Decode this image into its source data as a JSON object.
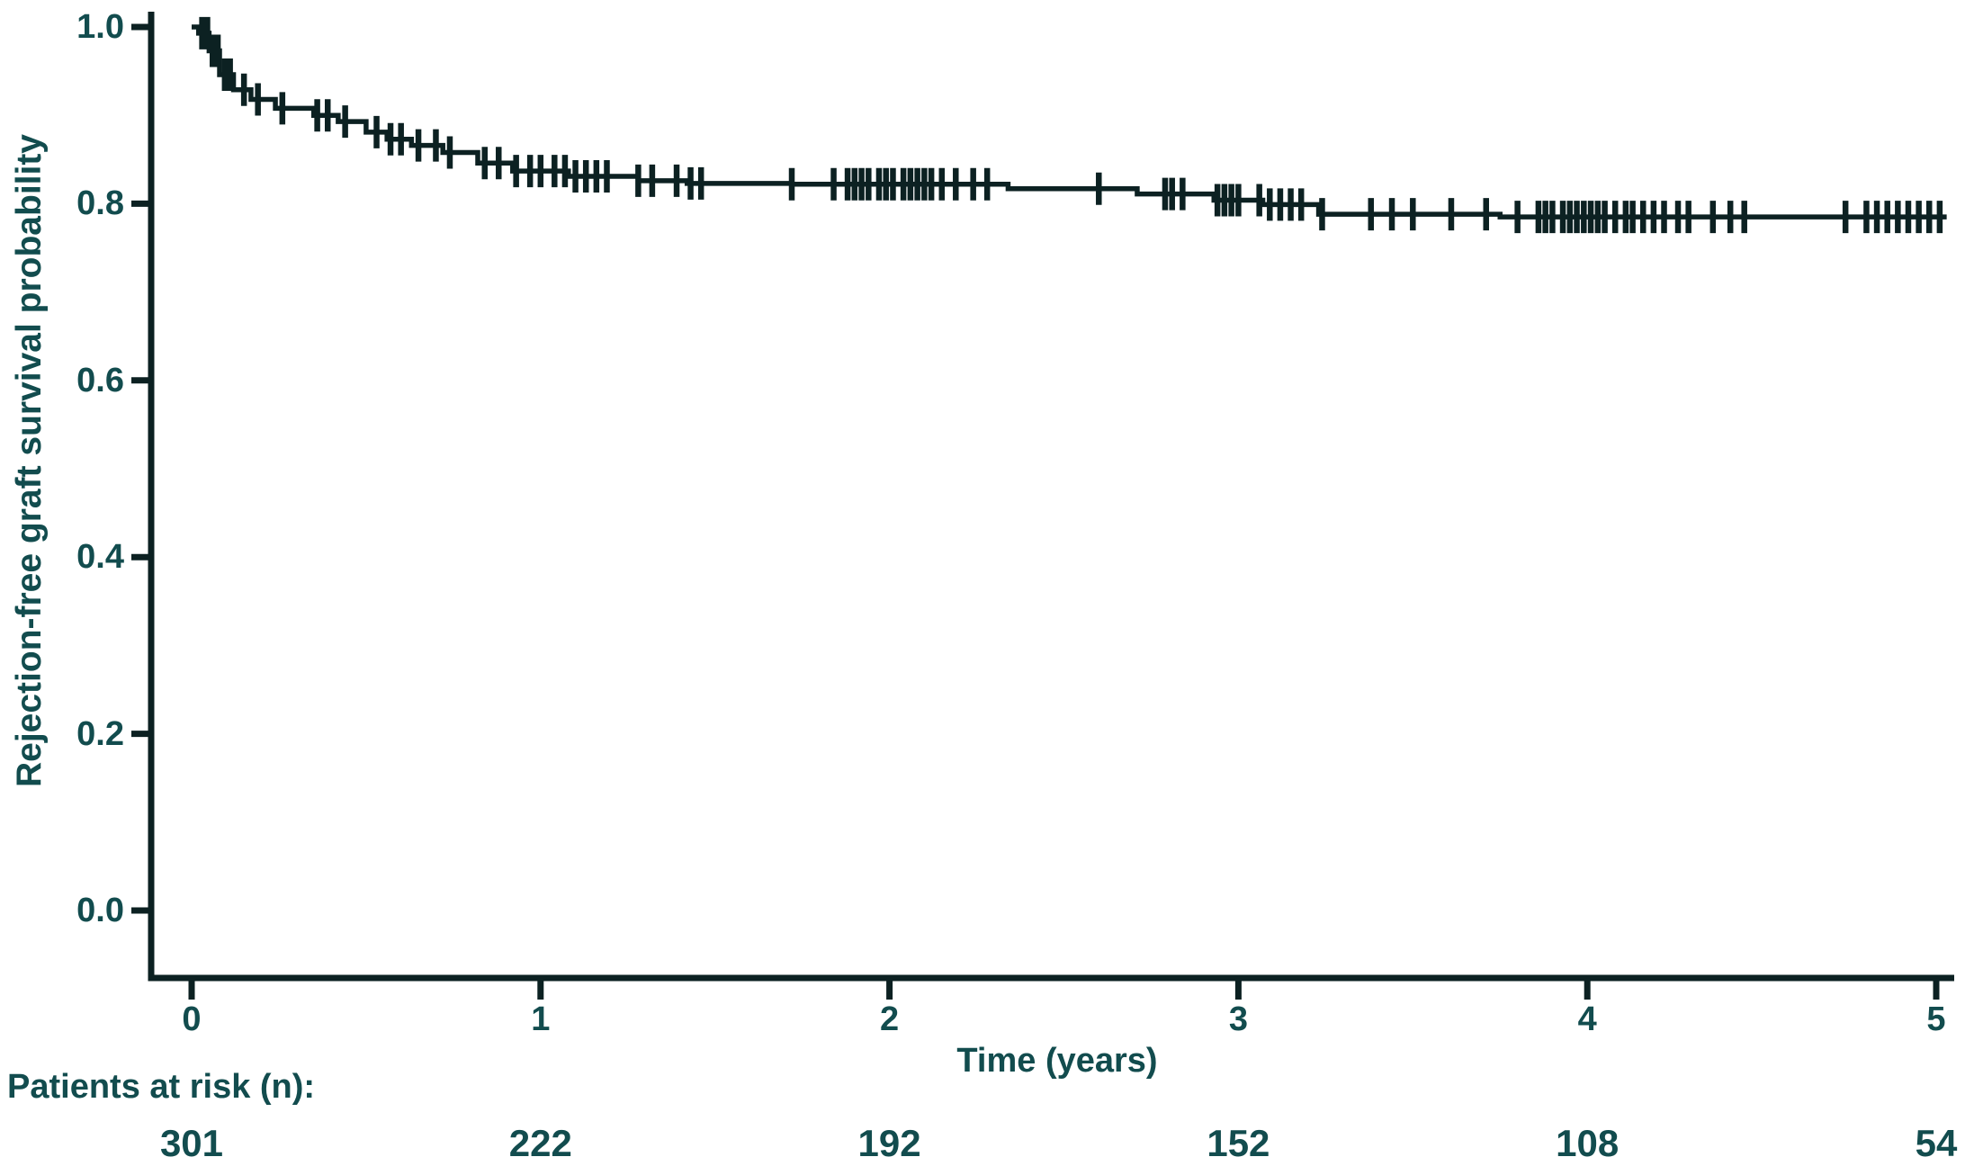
{
  "chart_data": {
    "type": "line",
    "subtype": "kaplan-meier-step-curve",
    "title": "",
    "xlabel": "Time (years)",
    "ylabel": "Rejection-free graft survival probability",
    "xlim": [
      0,
      5
    ],
    "ylim": [
      0.0,
      1.0
    ],
    "grid": false,
    "legend": "none",
    "x_ticks": [
      {
        "value": 0,
        "label": "0"
      },
      {
        "value": 1,
        "label": "1"
      },
      {
        "value": 2,
        "label": "2"
      },
      {
        "value": 3,
        "label": "3"
      },
      {
        "value": 4,
        "label": "4"
      },
      {
        "value": 5,
        "label": "5"
      }
    ],
    "y_ticks": [
      {
        "value": 1.0,
        "label": "1.0"
      },
      {
        "value": 0.8,
        "label": "0.8"
      },
      {
        "value": 0.6,
        "label": "0.6"
      },
      {
        "value": 0.4,
        "label": "0.4"
      },
      {
        "value": 0.2,
        "label": "0.2"
      },
      {
        "value": 0.0,
        "label": "0.0"
      }
    ],
    "series": [
      {
        "name": "Rejection-free graft survival",
        "step_points": [
          [
            0.0,
            1.0
          ],
          [
            0.02,
            0.993
          ],
          [
            0.05,
            0.973
          ],
          [
            0.08,
            0.946
          ],
          [
            0.12,
            0.929
          ],
          [
            0.17,
            0.918
          ],
          [
            0.24,
            0.908
          ],
          [
            0.35,
            0.9
          ],
          [
            0.42,
            0.893
          ],
          [
            0.5,
            0.881
          ],
          [
            0.56,
            0.873
          ],
          [
            0.63,
            0.866
          ],
          [
            0.72,
            0.858
          ],
          [
            0.82,
            0.846
          ],
          [
            0.92,
            0.837
          ],
          [
            1.08,
            0.831
          ],
          [
            1.28,
            0.826
          ],
          [
            1.42,
            0.823
          ],
          [
            1.72,
            0.822
          ],
          [
            2.34,
            0.817
          ],
          [
            2.71,
            0.811
          ],
          [
            2.93,
            0.804
          ],
          [
            3.07,
            0.799
          ],
          [
            3.23,
            0.788
          ],
          [
            3.75,
            0.785
          ],
          [
            5.03,
            0.785
          ]
        ],
        "censor_times": [
          0.03,
          0.045,
          0.06,
          0.075,
          0.095,
          0.11,
          0.15,
          0.19,
          0.26,
          0.36,
          0.39,
          0.44,
          0.53,
          0.57,
          0.6,
          0.65,
          0.7,
          0.74,
          0.84,
          0.88,
          0.93,
          0.97,
          1.0,
          1.04,
          1.07,
          1.1,
          1.13,
          1.16,
          1.19,
          1.28,
          1.32,
          1.39,
          1.43,
          1.46,
          1.72,
          1.84,
          1.88,
          1.9,
          1.92,
          1.94,
          1.97,
          1.99,
          2.01,
          2.04,
          2.06,
          2.08,
          2.1,
          2.12,
          2.15,
          2.19,
          2.24,
          2.28,
          2.6,
          2.79,
          2.81,
          2.84,
          2.94,
          2.96,
          2.98,
          3.0,
          3.06,
          3.09,
          3.12,
          3.15,
          3.18,
          3.24,
          3.38,
          3.44,
          3.5,
          3.61,
          3.71,
          3.8,
          3.86,
          3.88,
          3.9,
          3.93,
          3.95,
          3.97,
          3.99,
          4.01,
          4.03,
          4.05,
          4.08,
          4.11,
          4.13,
          4.16,
          4.19,
          4.22,
          4.26,
          4.29,
          4.36,
          4.41,
          4.45,
          4.74,
          4.8,
          4.83,
          4.86,
          4.89,
          4.92,
          4.95,
          4.98,
          5.01
        ]
      }
    ],
    "at_risk": {
      "label": "Patients at risk (n):",
      "times": [
        0,
        1,
        2,
        3,
        4,
        5
      ],
      "counts": [
        "301",
        "222",
        "192",
        "152",
        "108",
        "54"
      ]
    },
    "colors": {
      "line": "#0c2122",
      "text": "#124c4e",
      "background": "#ffffff"
    }
  }
}
